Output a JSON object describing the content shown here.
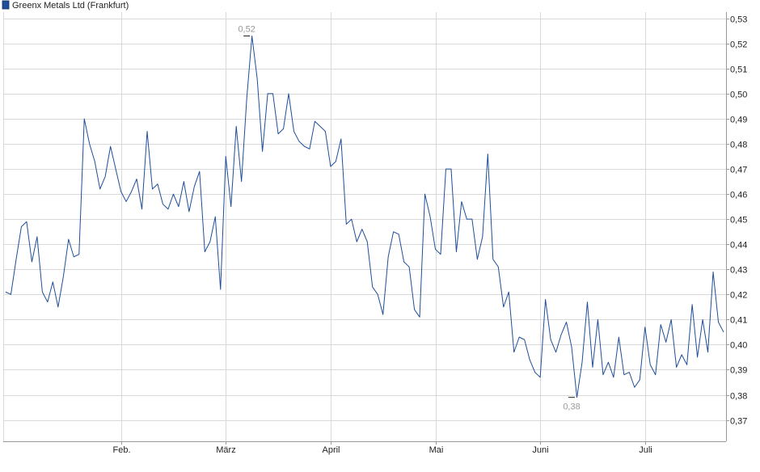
{
  "chart_data": {
    "type": "line",
    "legend": {
      "placement": "top-left",
      "label": "Greenx Metals Ltd (Frankfurt)"
    },
    "colors": {
      "line": "#1f4e99",
      "grid": "#d9d9d9",
      "axis": "#999999",
      "marker_label": "#999999"
    },
    "grid": true,
    "ylim": [
      0.3615,
      0.5325
    ],
    "y_ticks": [
      {
        "value": 0.37,
        "label": "0,37"
      },
      {
        "value": 0.38,
        "label": "0,38"
      },
      {
        "value": 0.39,
        "label": "0,39"
      },
      {
        "value": 0.4,
        "label": "0,40"
      },
      {
        "value": 0.41,
        "label": "0,41"
      },
      {
        "value": 0.42,
        "label": "0,42"
      },
      {
        "value": 0.43,
        "label": "0,43"
      },
      {
        "value": 0.44,
        "label": "0,44"
      },
      {
        "value": 0.45,
        "label": "0,45"
      },
      {
        "value": 0.46,
        "label": "0,46"
      },
      {
        "value": 0.47,
        "label": "0,47"
      },
      {
        "value": 0.48,
        "label": "0,48"
      },
      {
        "value": 0.49,
        "label": "0,49"
      },
      {
        "value": 0.5,
        "label": "0,50"
      },
      {
        "value": 0.51,
        "label": "0,51"
      },
      {
        "value": 0.52,
        "label": "0,52"
      },
      {
        "value": 0.53,
        "label": "0,53"
      }
    ],
    "x_ticks": [
      {
        "index": 22,
        "label": "Feb."
      },
      {
        "index": 42,
        "label": "März"
      },
      {
        "index": 62,
        "label": "April"
      },
      {
        "index": 82,
        "label": "Mai"
      },
      {
        "index": 102,
        "label": "Juni"
      },
      {
        "index": 122,
        "label": "Juli"
      }
    ],
    "annotations": [
      {
        "type": "max",
        "index": 46,
        "value": 0.523,
        "label": "0,52"
      },
      {
        "type": "min",
        "index": 108,
        "value": 0.379,
        "label": "0,38"
      }
    ],
    "series": [
      {
        "values": [
          0.421,
          0.42,
          0.434,
          0.447,
          0.449,
          0.433,
          0.443,
          0.421,
          0.417,
          0.425,
          0.415,
          0.427,
          0.442,
          0.435,
          0.436,
          0.49,
          0.48,
          0.473,
          0.462,
          0.467,
          0.479,
          0.47,
          0.461,
          0.457,
          0.461,
          0.466,
          0.454,
          0.485,
          0.462,
          0.464,
          0.456,
          0.454,
          0.46,
          0.455,
          0.465,
          0.453,
          0.463,
          0.469,
          0.437,
          0.441,
          0.451,
          0.422,
          0.475,
          0.455,
          0.487,
          0.465,
          0.498,
          0.523,
          0.506,
          0.477,
          0.5,
          0.5,
          0.484,
          0.486,
          0.5,
          0.485,
          0.481,
          0.479,
          0.478,
          0.489,
          0.487,
          0.485,
          0.471,
          0.473,
          0.482,
          0.448,
          0.45,
          0.441,
          0.446,
          0.441,
          0.423,
          0.42,
          0.412,
          0.435,
          0.445,
          0.444,
          0.433,
          0.431,
          0.414,
          0.411,
          0.46,
          0.451,
          0.438,
          0.436,
          0.47,
          0.47,
          0.437,
          0.457,
          0.45,
          0.45,
          0.434,
          0.443,
          0.476,
          0.434,
          0.431,
          0.415,
          0.421,
          0.397,
          0.403,
          0.402,
          0.394,
          0.389,
          0.387,
          0.418,
          0.402,
          0.397,
          0.404,
          0.409,
          0.399,
          0.379,
          0.393,
          0.417,
          0.391,
          0.41,
          0.388,
          0.393,
          0.387,
          0.403,
          0.388,
          0.389,
          0.383,
          0.386,
          0.407,
          0.392,
          0.388,
          0.408,
          0.401,
          0.41,
          0.391,
          0.396,
          0.392,
          0.416,
          0.395,
          0.41,
          0.397,
          0.429,
          0.409,
          0.405
        ]
      }
    ]
  }
}
